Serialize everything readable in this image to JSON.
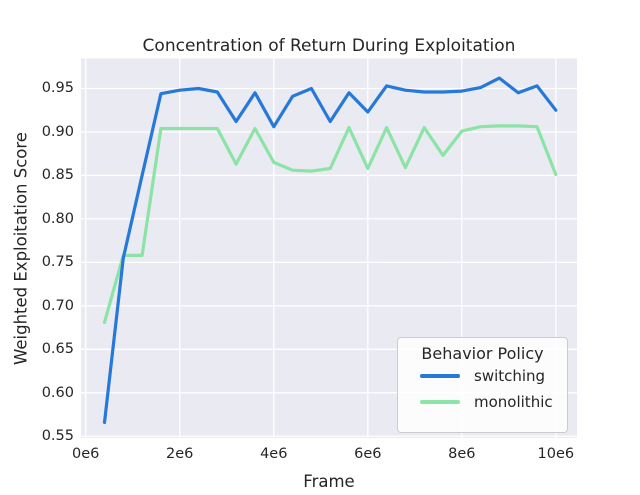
{
  "chart_data": {
    "type": "line",
    "title": "Concentration of Return During Exploitation",
    "xlabel": "Frame",
    "ylabel": "Weighted Exploitation Score",
    "x": [
      0.4,
      0.8,
      1.2,
      1.6,
      2.0,
      2.4,
      2.8,
      3.2,
      3.6,
      4.0,
      4.4,
      4.8,
      5.2,
      5.6,
      6.0,
      6.4,
      6.8,
      7.2,
      7.6,
      8.0,
      8.4,
      8.8,
      9.2,
      9.6,
      10.0
    ],
    "x_unit": "millions of frames",
    "series": [
      {
        "name": "switching",
        "color": "#2678d9",
        "values": [
          0.566,
          0.755,
          0.85,
          0.944,
          0.948,
          0.95,
          0.946,
          0.912,
          0.945,
          0.906,
          0.941,
          0.95,
          0.912,
          0.945,
          0.923,
          0.953,
          0.948,
          0.946,
          0.946,
          0.947,
          0.951,
          0.962,
          0.945,
          0.953,
          0.925
        ]
      },
      {
        "name": "monolithic",
        "color": "#8ce3a6",
        "values": [
          0.681,
          0.758,
          0.758,
          0.904,
          0.904,
          0.904,
          0.904,
          0.863,
          0.904,
          0.865,
          0.856,
          0.855,
          0.858,
          0.905,
          0.858,
          0.905,
          0.859,
          0.905,
          0.873,
          0.901,
          0.906,
          0.907,
          0.907,
          0.906,
          0.851
        ]
      }
    ],
    "legend": {
      "title": "Behavior Policy",
      "position": "lower right"
    },
    "xlim": [
      -0.1,
      10.45
    ],
    "ylim": [
      0.548,
      0.9845
    ],
    "x_ticks": {
      "values": [
        0,
        2,
        4,
        6,
        8,
        10
      ],
      "labels": [
        "0e6",
        "2e6",
        "4e6",
        "6e6",
        "8e6",
        "10e6"
      ]
    },
    "y_ticks": {
      "values": [
        0.55,
        0.6,
        0.65,
        0.7,
        0.75,
        0.8,
        0.85,
        0.9,
        0.95
      ],
      "labels": [
        "0.55",
        "0.60",
        "0.65",
        "0.70",
        "0.75",
        "0.80",
        "0.85",
        "0.90",
        "0.95"
      ]
    },
    "grid": true,
    "style": {
      "plot_background": "#eaeaf2",
      "grid_color": "#ffffff",
      "text_color": "#262626",
      "line_width": 3.2
    }
  }
}
